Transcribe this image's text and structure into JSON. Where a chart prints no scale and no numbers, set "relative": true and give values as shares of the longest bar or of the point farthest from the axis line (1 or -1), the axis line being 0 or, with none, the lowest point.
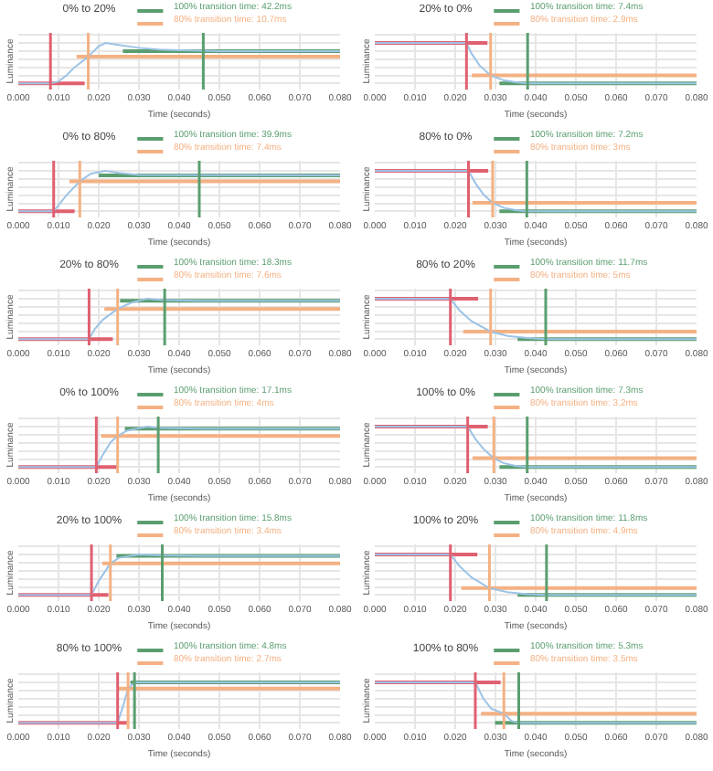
{
  "chart_data": [
    {
      "type": "line",
      "title": "0% to 20%",
      "xlabel": "Time (seconds)",
      "ylabel": "Luminance",
      "relative": true,
      "grid": true,
      "legend": "top right",
      "xlim": [
        0,
        0.08
      ],
      "xticks": [
        {
          "value": 0,
          "label": "0.000"
        },
        {
          "value": 0.01,
          "label": "0.010"
        },
        {
          "value": 0.02,
          "label": "0.020"
        },
        {
          "value": 0.03,
          "label": "0.030"
        },
        {
          "value": 0.04,
          "label": "0.040"
        },
        {
          "value": 0.05,
          "label": "0.050"
        },
        {
          "value": 0.06,
          "label": "0.060"
        },
        {
          "value": 0.07,
          "label": "0.070"
        },
        {
          "value": 0.08,
          "label": "0.080"
        }
      ],
      "series": [
        {
          "color": "#9dc3e6",
          "x": [
            0,
            0.008,
            0.01,
            0.012,
            0.014,
            0.0174,
            0.02,
            0.0217,
            0.025,
            0.03,
            0.035,
            0.04,
            0.05,
            0.08
          ],
          "values": [
            0,
            0,
            0.05,
            0.2,
            0.4,
            0.66,
            0.92,
            1,
            0.95,
            0.88,
            0.84,
            0.82,
            0.8,
            0.8
          ]
        },
        {
          "color": "#e06070",
          "x": [
            0,
            0.0165
          ],
          "values": [
            0,
            0
          ]
        },
        {
          "name": "100% transition time: 42.2ms",
          "color": "#5a9e6f",
          "x": [
            0.026,
            0.08
          ],
          "values": [
            0.8,
            0.8
          ]
        },
        {
          "name": "80% transition time: 10.7ms",
          "color": "#f4b183",
          "x": [
            0.0145,
            0.08
          ],
          "values": [
            0.66,
            0.66
          ]
        }
      ],
      "ref_lines": [
        {
          "axis": "x",
          "value": 0.008,
          "color": "#e06070"
        },
        {
          "axis": "x",
          "value": 0.0174,
          "color": "#f4b183"
        },
        {
          "axis": "x",
          "value": 0.046,
          "color": "#5a9e6f"
        }
      ]
    },
    {
      "type": "line",
      "title": "20% to 0%",
      "xlabel": "Time (seconds)",
      "ylabel": "Luminance",
      "relative": true,
      "grid": true,
      "legend": "top right",
      "xlim": [
        0,
        0.08
      ],
      "xticks": [
        {
          "value": 0,
          "label": "0.000"
        },
        {
          "value": 0.01,
          "label": "0.010"
        },
        {
          "value": 0.02,
          "label": "0.020"
        },
        {
          "value": 0.03,
          "label": "0.030"
        },
        {
          "value": 0.04,
          "label": "0.040"
        },
        {
          "value": 0.05,
          "label": "0.050"
        },
        {
          "value": 0.06,
          "label": "0.060"
        },
        {
          "value": 0.07,
          "label": "0.070"
        },
        {
          "value": 0.08,
          "label": "0.080"
        }
      ],
      "series": [
        {
          "color": "#9dc3e6",
          "x": [
            0,
            0.0228,
            0.024,
            0.026,
            0.0288,
            0.032,
            0.035,
            0.038,
            0.08
          ],
          "values": [
            1,
            1,
            0.75,
            0.45,
            0.2,
            0.08,
            0.03,
            0,
            0
          ]
        },
        {
          "color": "#e06070",
          "x": [
            0,
            0.028
          ],
          "values": [
            1,
            1
          ]
        },
        {
          "name": "100% transition time: 7.4ms",
          "color": "#5a9e6f",
          "x": [
            0.031,
            0.08
          ],
          "values": [
            0,
            0
          ]
        },
        {
          "name": "80% transition time: 2.9ms",
          "color": "#f4b183",
          "x": [
            0.0241,
            0.08
          ],
          "values": [
            0.2,
            0.2
          ]
        }
      ],
      "ref_lines": [
        {
          "axis": "x",
          "value": 0.0228,
          "color": "#e06070"
        },
        {
          "axis": "x",
          "value": 0.0288,
          "color": "#f4b183"
        },
        {
          "axis": "x",
          "value": 0.038,
          "color": "#5a9e6f"
        }
      ]
    },
    {
      "type": "line",
      "title": "0% to 80%",
      "xlabel": "Time (seconds)",
      "ylabel": "Luminance",
      "relative": true,
      "grid": true,
      "legend": "top right",
      "xlim": [
        0,
        0.08
      ],
      "xticks": [
        {
          "value": 0,
          "label": "0.000"
        },
        {
          "value": 0.01,
          "label": "0.010"
        },
        {
          "value": 0.02,
          "label": "0.020"
        },
        {
          "value": 0.03,
          "label": "0.030"
        },
        {
          "value": 0.04,
          "label": "0.040"
        },
        {
          "value": 0.05,
          "label": "0.050"
        },
        {
          "value": 0.06,
          "label": "0.060"
        },
        {
          "value": 0.07,
          "label": "0.070"
        },
        {
          "value": 0.08,
          "label": "0.080"
        }
      ],
      "series": [
        {
          "color": "#9dc3e6",
          "x": [
            0,
            0.0088,
            0.01,
            0.012,
            0.0153,
            0.018,
            0.0217,
            0.025,
            0.03,
            0.08
          ],
          "values": [
            0,
            0,
            0.15,
            0.4,
            0.74,
            0.93,
            1,
            0.95,
            0.9,
            0.89
          ]
        },
        {
          "color": "#e06070",
          "x": [
            0,
            0.014
          ],
          "values": [
            0,
            0
          ]
        },
        {
          "name": "100% transition time: 39.9ms",
          "color": "#5a9e6f",
          "x": [
            0.02,
            0.08
          ],
          "values": [
            0.89,
            0.89
          ]
        },
        {
          "name": "80% transition time: 7.4ms",
          "color": "#f4b183",
          "x": [
            0.0127,
            0.08
          ],
          "values": [
            0.74,
            0.74
          ]
        }
      ],
      "ref_lines": [
        {
          "axis": "x",
          "value": 0.0088,
          "color": "#e06070"
        },
        {
          "axis": "x",
          "value": 0.0153,
          "color": "#f4b183"
        },
        {
          "axis": "x",
          "value": 0.045,
          "color": "#5a9e6f"
        }
      ]
    },
    {
      "type": "line",
      "title": "80% to 0%",
      "xlabel": "Time (seconds)",
      "ylabel": "Luminance",
      "relative": true,
      "grid": true,
      "legend": "top right",
      "xlim": [
        0,
        0.08
      ],
      "xticks": [
        {
          "value": 0,
          "label": "0.000"
        },
        {
          "value": 0.01,
          "label": "0.010"
        },
        {
          "value": 0.02,
          "label": "0.020"
        },
        {
          "value": 0.03,
          "label": "0.030"
        },
        {
          "value": 0.04,
          "label": "0.040"
        },
        {
          "value": 0.05,
          "label": "0.050"
        },
        {
          "value": 0.06,
          "label": "0.060"
        },
        {
          "value": 0.07,
          "label": "0.070"
        },
        {
          "value": 0.08,
          "label": "0.080"
        }
      ],
      "series": [
        {
          "color": "#9dc3e6",
          "x": [
            0,
            0.0233,
            0.025,
            0.027,
            0.0293,
            0.032,
            0.035,
            0.0378,
            0.08
          ],
          "values": [
            1,
            1,
            0.7,
            0.42,
            0.21,
            0.09,
            0.03,
            0,
            0
          ]
        },
        {
          "color": "#e06070",
          "x": [
            0,
            0.0282
          ],
          "values": [
            1,
            1
          ]
        },
        {
          "name": "100% transition time: 7.2ms",
          "color": "#5a9e6f",
          "x": [
            0.031,
            0.08
          ],
          "values": [
            0,
            0
          ]
        },
        {
          "name": "80% transition time: 3ms",
          "color": "#f4b183",
          "x": [
            0.0243,
            0.08
          ],
          "values": [
            0.21,
            0.21
          ]
        }
      ],
      "ref_lines": [
        {
          "axis": "x",
          "value": 0.0233,
          "color": "#e06070"
        },
        {
          "axis": "x",
          "value": 0.0293,
          "color": "#f4b183"
        },
        {
          "axis": "x",
          "value": 0.0378,
          "color": "#5a9e6f"
        }
      ]
    },
    {
      "type": "line",
      "title": "20% to 80%",
      "xlabel": "Time (seconds)",
      "ylabel": "Luminance",
      "relative": true,
      "grid": true,
      "legend": "top right",
      "xlim": [
        0,
        0.08
      ],
      "xticks": [
        {
          "value": 0,
          "label": "0.000"
        },
        {
          "value": 0.01,
          "label": "0.010"
        },
        {
          "value": 0.02,
          "label": "0.020"
        },
        {
          "value": 0.03,
          "label": "0.030"
        },
        {
          "value": 0.04,
          "label": "0.040"
        },
        {
          "value": 0.05,
          "label": "0.050"
        },
        {
          "value": 0.06,
          "label": "0.060"
        },
        {
          "value": 0.07,
          "label": "0.070"
        },
        {
          "value": 0.08,
          "label": "0.080"
        }
      ],
      "series": [
        {
          "color": "#9dc3e6",
          "x": [
            0,
            0.0176,
            0.019,
            0.021,
            0.0247,
            0.028,
            0.032,
            0.036,
            0.045,
            0.08
          ],
          "values": [
            0,
            0,
            0.25,
            0.48,
            0.75,
            0.9,
            1,
            0.97,
            0.95,
            0.95
          ]
        },
        {
          "color": "#e06070",
          "x": [
            0,
            0.0235
          ],
          "values": [
            0,
            0
          ]
        },
        {
          "name": "100% transition time: 18.3ms",
          "color": "#5a9e6f",
          "x": [
            0.0253,
            0.08
          ],
          "values": [
            0.95,
            0.95
          ]
        },
        {
          "name": "80% transition time: 7.6ms",
          "color": "#f4b183",
          "x": [
            0.0214,
            0.08
          ],
          "values": [
            0.75,
            0.75
          ]
        }
      ],
      "ref_lines": [
        {
          "axis": "x",
          "value": 0.0176,
          "color": "#e06070"
        },
        {
          "axis": "x",
          "value": 0.0247,
          "color": "#f4b183"
        },
        {
          "axis": "x",
          "value": 0.0364,
          "color": "#5a9e6f"
        }
      ]
    },
    {
      "type": "line",
      "title": "80% to 20%",
      "xlabel": "Time (seconds)",
      "ylabel": "Luminance",
      "relative": true,
      "grid": true,
      "legend": "top right",
      "xlim": [
        0,
        0.08
      ],
      "xticks": [
        {
          "value": 0,
          "label": "0.000"
        },
        {
          "value": 0.01,
          "label": "0.010"
        },
        {
          "value": 0.02,
          "label": "0.020"
        },
        {
          "value": 0.03,
          "label": "0.030"
        },
        {
          "value": 0.04,
          "label": "0.040"
        },
        {
          "value": 0.05,
          "label": "0.050"
        },
        {
          "value": 0.06,
          "label": "0.060"
        },
        {
          "value": 0.07,
          "label": "0.070"
        },
        {
          "value": 0.08,
          "label": "0.080"
        }
      ],
      "series": [
        {
          "color": "#9dc3e6",
          "x": [
            0,
            0.0188,
            0.021,
            0.024,
            0.0288,
            0.033,
            0.038,
            0.0425,
            0.08
          ],
          "values": [
            1,
            1,
            0.72,
            0.45,
            0.19,
            0.08,
            0.03,
            0,
            0
          ]
        },
        {
          "color": "#e06070",
          "x": [
            0,
            0.0257
          ],
          "values": [
            1,
            1
          ]
        },
        {
          "name": "100% transition time: 11.7ms",
          "color": "#5a9e6f",
          "x": [
            0.0355,
            0.08
          ],
          "values": [
            0,
            0
          ]
        },
        {
          "name": "80% transition time: 5ms",
          "color": "#f4b183",
          "x": [
            0.022,
            0.08
          ],
          "values": [
            0.19,
            0.19
          ]
        }
      ],
      "ref_lines": [
        {
          "axis": "x",
          "value": 0.0188,
          "color": "#e06070"
        },
        {
          "axis": "x",
          "value": 0.0288,
          "color": "#f4b183"
        },
        {
          "axis": "x",
          "value": 0.0425,
          "color": "#5a9e6f"
        }
      ]
    },
    {
      "type": "line",
      "title": "0% to 100%",
      "xlabel": "Time (seconds)",
      "ylabel": "Luminance",
      "relative": true,
      "grid": true,
      "legend": "top right",
      "xlim": [
        0,
        0.08
      ],
      "xticks": [
        {
          "value": 0,
          "label": "0.000"
        },
        {
          "value": 0.01,
          "label": "0.010"
        },
        {
          "value": 0.02,
          "label": "0.020"
        },
        {
          "value": 0.03,
          "label": "0.030"
        },
        {
          "value": 0.04,
          "label": "0.040"
        },
        {
          "value": 0.05,
          "label": "0.050"
        },
        {
          "value": 0.06,
          "label": "0.060"
        },
        {
          "value": 0.07,
          "label": "0.070"
        },
        {
          "value": 0.08,
          "label": "0.080"
        }
      ],
      "series": [
        {
          "color": "#9dc3e6",
          "x": [
            0,
            0.0194,
            0.021,
            0.023,
            0.0247,
            0.027,
            0.032,
            0.035,
            0.045,
            0.08
          ],
          "values": [
            0,
            0,
            0.3,
            0.62,
            0.77,
            0.9,
            1,
            0.97,
            0.95,
            0.95
          ]
        },
        {
          "color": "#e06070",
          "x": [
            0,
            0.0247
          ],
          "values": [
            0,
            0
          ]
        },
        {
          "name": "100% transition time: 17.1ms",
          "color": "#5a9e6f",
          "x": [
            0.0265,
            0.08
          ],
          "values": [
            0.95,
            0.95
          ]
        },
        {
          "name": "80% transition time: 4ms",
          "color": "#f4b183",
          "x": [
            0.0206,
            0.08
          ],
          "values": [
            0.77,
            0.77
          ]
        }
      ],
      "ref_lines": [
        {
          "axis": "x",
          "value": 0.0194,
          "color": "#e06070"
        },
        {
          "axis": "x",
          "value": 0.0247,
          "color": "#f4b183"
        },
        {
          "axis": "x",
          "value": 0.0348,
          "color": "#5a9e6f"
        }
      ]
    },
    {
      "type": "line",
      "title": "100% to 0%",
      "xlabel": "Time (seconds)",
      "ylabel": "Luminance",
      "relative": true,
      "grid": true,
      "legend": "top right",
      "xlim": [
        0,
        0.08
      ],
      "xticks": [
        {
          "value": 0,
          "label": "0.000"
        },
        {
          "value": 0.01,
          "label": "0.010"
        },
        {
          "value": 0.02,
          "label": "0.020"
        },
        {
          "value": 0.03,
          "label": "0.030"
        },
        {
          "value": 0.04,
          "label": "0.040"
        },
        {
          "value": 0.05,
          "label": "0.050"
        },
        {
          "value": 0.06,
          "label": "0.060"
        },
        {
          "value": 0.07,
          "label": "0.070"
        },
        {
          "value": 0.08,
          "label": "0.080"
        }
      ],
      "series": [
        {
          "color": "#9dc3e6",
          "x": [
            0,
            0.0231,
            0.025,
            0.027,
            0.0296,
            0.032,
            0.035,
            0.0379,
            0.08
          ],
          "values": [
            1,
            1,
            0.7,
            0.45,
            0.22,
            0.1,
            0.03,
            0,
            0
          ]
        },
        {
          "color": "#e06070",
          "x": [
            0,
            0.0281
          ],
          "values": [
            1,
            1
          ]
        },
        {
          "name": "100% transition time: 7.3ms",
          "color": "#5a9e6f",
          "x": [
            0.031,
            0.08
          ],
          "values": [
            0,
            0
          ]
        },
        {
          "name": "80% transition time: 3.2ms",
          "color": "#f4b183",
          "x": [
            0.0243,
            0.08
          ],
          "values": [
            0.22,
            0.22
          ]
        }
      ],
      "ref_lines": [
        {
          "axis": "x",
          "value": 0.0231,
          "color": "#e06070"
        },
        {
          "axis": "x",
          "value": 0.0296,
          "color": "#f4b183"
        },
        {
          "axis": "x",
          "value": 0.0379,
          "color": "#5a9e6f"
        }
      ]
    },
    {
      "type": "line",
      "title": "20% to 100%",
      "xlabel": "Time (seconds)",
      "ylabel": "Luminance",
      "relative": true,
      "grid": true,
      "legend": "top right",
      "xlim": [
        0,
        0.08
      ],
      "xticks": [
        {
          "value": 0,
          "label": "0.000"
        },
        {
          "value": 0.01,
          "label": "0.010"
        },
        {
          "value": 0.02,
          "label": "0.020"
        },
        {
          "value": 0.03,
          "label": "0.030"
        },
        {
          "value": 0.04,
          "label": "0.040"
        },
        {
          "value": 0.05,
          "label": "0.050"
        },
        {
          "value": 0.06,
          "label": "0.060"
        },
        {
          "value": 0.07,
          "label": "0.070"
        },
        {
          "value": 0.08,
          "label": "0.080"
        }
      ],
      "series": [
        {
          "color": "#9dc3e6",
          "x": [
            0,
            0.0182,
            0.02,
            0.0229,
            0.025,
            0.03,
            0.0358,
            0.045,
            0.08
          ],
          "values": [
            0,
            0,
            0.35,
            0.78,
            0.92,
            1,
            0.98,
            0.97,
            0.97
          ]
        },
        {
          "color": "#e06070",
          "x": [
            0,
            0.0224
          ],
          "values": [
            0,
            0
          ]
        },
        {
          "name": "100% transition time: 15.8ms",
          "color": "#5a9e6f",
          "x": [
            0.0244,
            0.08
          ],
          "values": [
            0.97,
            0.97
          ]
        },
        {
          "name": "80% transition time: 3.4ms",
          "color": "#f4b183",
          "x": [
            0.0209,
            0.08
          ],
          "values": [
            0.78,
            0.78
          ]
        }
      ],
      "ref_lines": [
        {
          "axis": "x",
          "value": 0.0182,
          "color": "#e06070"
        },
        {
          "axis": "x",
          "value": 0.0229,
          "color": "#f4b183"
        },
        {
          "axis": "x",
          "value": 0.0358,
          "color": "#5a9e6f"
        }
      ]
    },
    {
      "type": "line",
      "title": "100% to 20%",
      "xlabel": "Time (seconds)",
      "ylabel": "Luminance",
      "relative": true,
      "grid": true,
      "legend": "top right",
      "xlim": [
        0,
        0.08
      ],
      "xticks": [
        {
          "value": 0,
          "label": "0.000"
        },
        {
          "value": 0.01,
          "label": "0.010"
        },
        {
          "value": 0.02,
          "label": "0.020"
        },
        {
          "value": 0.03,
          "label": "0.030"
        },
        {
          "value": 0.04,
          "label": "0.040"
        },
        {
          "value": 0.05,
          "label": "0.050"
        },
        {
          "value": 0.06,
          "label": "0.060"
        },
        {
          "value": 0.07,
          "label": "0.070"
        },
        {
          "value": 0.08,
          "label": "0.080"
        }
      ],
      "series": [
        {
          "color": "#9dc3e6",
          "x": [
            0,
            0.0188,
            0.021,
            0.024,
            0.0285,
            0.033,
            0.038,
            0.0427,
            0.08
          ],
          "values": [
            1,
            1,
            0.72,
            0.44,
            0.17,
            0.07,
            0.02,
            0,
            0
          ]
        },
        {
          "color": "#e06070",
          "x": [
            0,
            0.0255
          ],
          "values": [
            1,
            1
          ]
        },
        {
          "name": "100% transition time: 11.8ms",
          "color": "#5a9e6f",
          "x": [
            0.0355,
            0.08
          ],
          "values": [
            0,
            0
          ]
        },
        {
          "name": "80% transition time: 4.9ms",
          "color": "#f4b183",
          "x": [
            0.0215,
            0.08
          ],
          "values": [
            0.17,
            0.17
          ]
        }
      ],
      "ref_lines": [
        {
          "axis": "x",
          "value": 0.0188,
          "color": "#e06070"
        },
        {
          "axis": "x",
          "value": 0.0285,
          "color": "#f4b183"
        },
        {
          "axis": "x",
          "value": 0.0427,
          "color": "#5a9e6f"
        }
      ]
    },
    {
      "type": "line",
      "title": "80% to 100%",
      "xlabel": "Time (seconds)",
      "ylabel": "Luminance",
      "relative": true,
      "grid": true,
      "legend": "top right",
      "xlim": [
        0,
        0.08
      ],
      "xticks": [
        {
          "value": 0,
          "label": "0.000"
        },
        {
          "value": 0.01,
          "label": "0.010"
        },
        {
          "value": 0.02,
          "label": "0.020"
        },
        {
          "value": 0.03,
          "label": "0.030"
        },
        {
          "value": 0.04,
          "label": "0.040"
        },
        {
          "value": 0.05,
          "label": "0.050"
        },
        {
          "value": 0.06,
          "label": "0.060"
        },
        {
          "value": 0.07,
          "label": "0.070"
        },
        {
          "value": 0.08,
          "label": "0.080"
        }
      ],
      "series": [
        {
          "color": "#9dc3e6",
          "x": [
            0,
            0.0247,
            0.026,
            0.0273,
            0.0289,
            0.035,
            0.08
          ],
          "values": [
            0,
            0,
            0.4,
            0.85,
            1,
            1,
            1
          ]
        },
        {
          "color": "#e06070",
          "x": [
            0,
            0.027
          ],
          "values": [
            0,
            0
          ]
        },
        {
          "name": "100% transition time: 4.8ms",
          "color": "#5a9e6f",
          "x": [
            0.0279,
            0.08
          ],
          "values": [
            1,
            1
          ]
        },
        {
          "name": "80% transition time: 2.7ms",
          "color": "#f4b183",
          "x": [
            0.0248,
            0.08
          ],
          "values": [
            0.85,
            0.85
          ]
        }
      ],
      "ref_lines": [
        {
          "axis": "x",
          "value": 0.0247,
          "color": "#e06070"
        },
        {
          "axis": "x",
          "value": 0.0273,
          "color": "#f4b183"
        },
        {
          "axis": "x",
          "value": 0.0289,
          "color": "#5a9e6f"
        }
      ]
    },
    {
      "type": "line",
      "title": "100% to 80%",
      "xlabel": "Time (seconds)",
      "ylabel": "Luminance",
      "relative": true,
      "grid": true,
      "legend": "top right",
      "xlim": [
        0,
        0.08
      ],
      "xticks": [
        {
          "value": 0,
          "label": "0.000"
        },
        {
          "value": 0.01,
          "label": "0.010"
        },
        {
          "value": 0.02,
          "label": "0.020"
        },
        {
          "value": 0.03,
          "label": "0.030"
        },
        {
          "value": 0.04,
          "label": "0.040"
        },
        {
          "value": 0.05,
          "label": "0.050"
        },
        {
          "value": 0.06,
          "label": "0.060"
        },
        {
          "value": 0.07,
          "label": "0.070"
        },
        {
          "value": 0.08,
          "label": "0.080"
        }
      ],
      "series": [
        {
          "color": "#9dc3e6",
          "x": [
            0,
            0.025,
            0.027,
            0.029,
            0.0321,
            0.034,
            0.0358,
            0.08
          ],
          "values": [
            1,
            1,
            0.6,
            0.35,
            0.23,
            0.05,
            0,
            0
          ]
        },
        {
          "color": "#e06070",
          "x": [
            0,
            0.0313
          ],
          "values": [
            1,
            1
          ]
        },
        {
          "name": "100% transition time: 5.3ms",
          "color": "#5a9e6f",
          "x": [
            0.0299,
            0.08
          ],
          "values": [
            0,
            0
          ]
        },
        {
          "name": "80% transition time: 3.5ms",
          "color": "#f4b183",
          "x": [
            0.0264,
            0.08
          ],
          "values": [
            0.23,
            0.23
          ]
        }
      ],
      "ref_lines": [
        {
          "axis": "x",
          "value": 0.025,
          "color": "#e06070"
        },
        {
          "axis": "x",
          "value": 0.0321,
          "color": "#f4b183"
        },
        {
          "axis": "x",
          "value": 0.0358,
          "color": "#5a9e6f"
        }
      ]
    }
  ]
}
